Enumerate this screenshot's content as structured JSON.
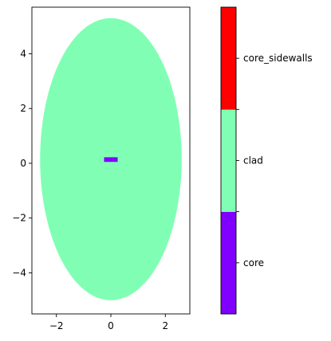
{
  "chart_data": {
    "type": "heatmap",
    "title": "",
    "xlabel": "",
    "ylabel": "",
    "xlim": [
      -2.9,
      2.9
    ],
    "ylim": [
      -5.5,
      5.7
    ],
    "xticks": [
      -2,
      0,
      2
    ],
    "yticks": [
      -4,
      -2,
      0,
      2,
      4
    ],
    "xtick_labels": [
      "−2",
      "0",
      "2"
    ],
    "ytick_labels": [
      "−4",
      "−2",
      "0",
      "2",
      "4"
    ],
    "regions": [
      {
        "name": "clad",
        "shape": "ellipse",
        "center": [
          0,
          0.15
        ],
        "semi_axes": [
          2.6,
          5.15
        ],
        "color": "#80ffb4"
      },
      {
        "name": "core",
        "shape": "rectangle",
        "x_range": [
          -0.25,
          0.25
        ],
        "y_range": [
          0.05,
          0.22
        ],
        "color": "#8000ff"
      }
    ],
    "colorbar": {
      "categories": [
        "core",
        "clad",
        "core_sidewalls"
      ],
      "colors": [
        "#8000ff",
        "#80ffb4",
        "#ff0000"
      ]
    },
    "grid": false,
    "legend": "colorbar-right"
  }
}
